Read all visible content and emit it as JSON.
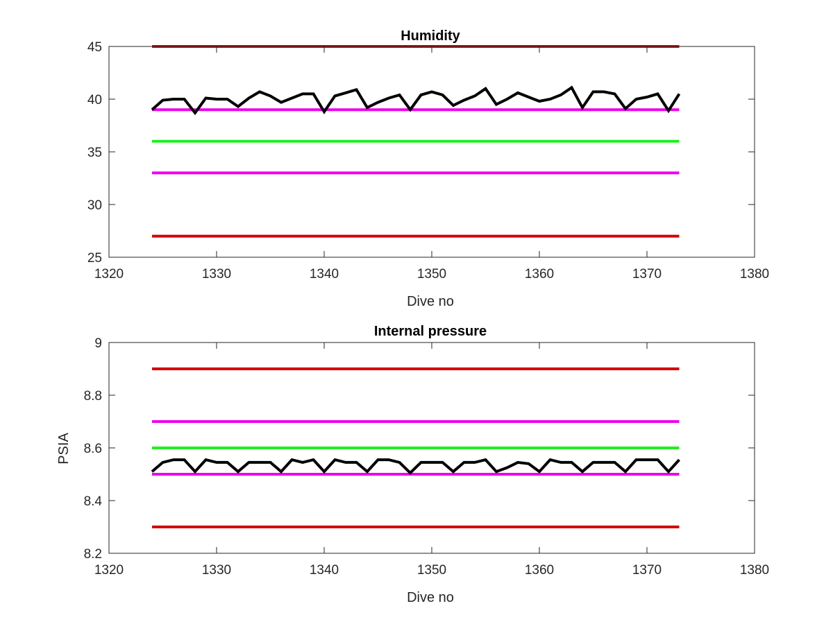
{
  "colors": {
    "axis": "#262626",
    "series": "#000000",
    "red_limit": "#d40000",
    "magenta_limit": "#ee00ee",
    "green_target": "#22ee22"
  },
  "chart_data": [
    {
      "type": "line",
      "title": "Humidity",
      "xlabel": "Dive no",
      "ylabel": "",
      "xlim": [
        1320,
        1380
      ],
      "ylim": [
        25,
        45
      ],
      "xticks": [
        1320,
        1330,
        1340,
        1350,
        1360,
        1370,
        1380
      ],
      "yticks": [
        25,
        30,
        35,
        40,
        45
      ],
      "grid": false,
      "reference_lines": [
        {
          "y": 45,
          "x": [
            1324,
            1373
          ],
          "color": "red"
        },
        {
          "y": 39,
          "x": [
            1324,
            1373
          ],
          "color": "magenta"
        },
        {
          "y": 36,
          "x": [
            1324,
            1373
          ],
          "color": "green"
        },
        {
          "y": 33,
          "x": [
            1324,
            1373
          ],
          "color": "magenta"
        },
        {
          "y": 27,
          "x": [
            1324,
            1373
          ],
          "color": "red"
        }
      ],
      "series": [
        {
          "color": "black",
          "x": [
            1324,
            1325,
            1326,
            1327,
            1328,
            1329,
            1330,
            1331,
            1332,
            1333,
            1334,
            1335,
            1336,
            1337,
            1338,
            1339,
            1340,
            1341,
            1342,
            1343,
            1344,
            1345,
            1346,
            1347,
            1348,
            1349,
            1350,
            1351,
            1352,
            1353,
            1354,
            1355,
            1356,
            1357,
            1358,
            1359,
            1360,
            1361,
            1362,
            1363,
            1364,
            1365,
            1366,
            1367,
            1368,
            1369,
            1370,
            1371,
            1372,
            1373
          ],
          "y": [
            39.0,
            39.9,
            40.0,
            40.0,
            38.7,
            40.1,
            40.0,
            40.0,
            39.3,
            40.1,
            40.7,
            40.3,
            39.7,
            40.1,
            40.5,
            40.5,
            38.8,
            40.3,
            40.6,
            40.9,
            39.2,
            39.7,
            40.1,
            40.4,
            39.0,
            40.4,
            40.7,
            40.4,
            39.4,
            39.9,
            40.3,
            41.0,
            39.5,
            40.0,
            40.6,
            40.2,
            39.8,
            40.0,
            40.4,
            41.1,
            39.2,
            40.7,
            40.7,
            40.5,
            39.1,
            40.0,
            40.2,
            40.5,
            38.9,
            40.5
          ]
        }
      ]
    },
    {
      "type": "line",
      "title": "Internal pressure",
      "xlabel": "Dive no",
      "ylabel": "PSIA",
      "xlim": [
        1320,
        1380
      ],
      "ylim": [
        8.2,
        9.0
      ],
      "xticks": [
        1320,
        1330,
        1340,
        1350,
        1360,
        1370,
        1380
      ],
      "yticks": [
        8.2,
        8.4,
        8.6,
        8.8,
        9.0
      ],
      "ytick_labels": [
        "8.2",
        "8.4",
        "8.6",
        "8.8",
        "9"
      ],
      "grid": false,
      "reference_lines": [
        {
          "y": 8.9,
          "x": [
            1324,
            1373
          ],
          "color": "red"
        },
        {
          "y": 8.7,
          "x": [
            1324,
            1373
          ],
          "color": "magenta"
        },
        {
          "y": 8.6,
          "x": [
            1324,
            1373
          ],
          "color": "green"
        },
        {
          "y": 8.5,
          "x": [
            1324,
            1373
          ],
          "color": "magenta"
        },
        {
          "y": 8.3,
          "x": [
            1324,
            1373
          ],
          "color": "red"
        }
      ],
      "series": [
        {
          "color": "black",
          "x": [
            1324,
            1325,
            1326,
            1327,
            1328,
            1329,
            1330,
            1331,
            1332,
            1333,
            1334,
            1335,
            1336,
            1337,
            1338,
            1339,
            1340,
            1341,
            1342,
            1343,
            1344,
            1345,
            1346,
            1347,
            1348,
            1349,
            1350,
            1351,
            1352,
            1353,
            1354,
            1355,
            1356,
            1357,
            1358,
            1359,
            1360,
            1361,
            1362,
            1363,
            1364,
            1365,
            1366,
            1367,
            1368,
            1369,
            1370,
            1371,
            1372,
            1373
          ],
          "y": [
            8.51,
            8.545,
            8.555,
            8.555,
            8.51,
            8.555,
            8.545,
            8.545,
            8.51,
            8.545,
            8.545,
            8.545,
            8.51,
            8.555,
            8.545,
            8.555,
            8.51,
            8.555,
            8.545,
            8.545,
            8.51,
            8.555,
            8.555,
            8.545,
            8.505,
            8.545,
            8.545,
            8.545,
            8.51,
            8.545,
            8.545,
            8.555,
            8.51,
            8.525,
            8.545,
            8.54,
            8.51,
            8.555,
            8.545,
            8.545,
            8.51,
            8.545,
            8.545,
            8.545,
            8.51,
            8.555,
            8.555,
            8.555,
            8.51,
            8.555
          ]
        }
      ]
    }
  ]
}
